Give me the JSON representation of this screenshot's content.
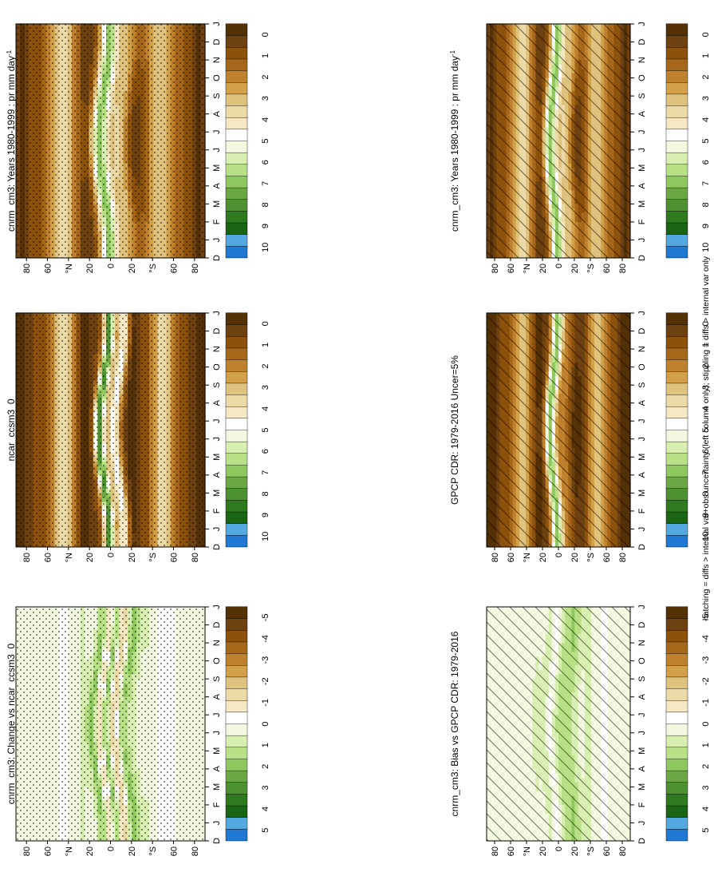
{
  "footnote": "hatching = diffs > internal var+obs uncertainty (left column only); stippling = diffs > internal var only",
  "months": [
    "D",
    "J",
    "F",
    "M",
    "A",
    "M",
    "J",
    "J",
    "A",
    "S",
    "O",
    "N",
    "D",
    "J"
  ],
  "lat_ticks": [
    "80",
    "60",
    "°N",
    "20",
    "0",
    "20",
    "°S",
    "60",
    "80"
  ],
  "palettes": {
    "clim": [
      "#543005",
      "#6e4110",
      "#8c510a",
      "#a6671a",
      "#bf812d",
      "#d1a049",
      "#dfc27d",
      "#ebd9a6",
      "#f6e8c3",
      "#ffffff",
      "#f2f9e0",
      "#d9efb2",
      "#b8e186",
      "#8fc85f",
      "#6ba845",
      "#4d9130",
      "#2f7a1e",
      "#1b6414",
      "#54a8e0",
      "#1f78d1"
    ],
    "diff": [
      "#543005",
      "#6e4110",
      "#8c510a",
      "#a6671a",
      "#bf812d",
      "#d1a049",
      "#dfc27d",
      "#ebd9a6",
      "#f6e8c3",
      "#ffffff",
      "#f2f9e0",
      "#d9efb2",
      "#b8e186",
      "#8fc85f",
      "#6ba845",
      "#4d9130",
      "#2f7a1e",
      "#1b6414",
      "#54a8e0",
      "#1f78d1"
    ]
  },
  "chart_data": [
    {
      "type": "heatmap",
      "title": "cnrm_cm3: Years 1980-1999 : pr mm day",
      "title_sup": "-1",
      "x": [
        "D",
        "J",
        "F",
        "M",
        "A",
        "M",
        "J",
        "J",
        "A",
        "S",
        "O",
        "N",
        "D",
        "J"
      ],
      "y_ticks": [
        "80",
        "60",
        "°N",
        "20",
        "0",
        "20",
        "°S",
        "60",
        "80"
      ],
      "colorbar_labels": [
        "10",
        "9",
        "8",
        "7",
        "6",
        "5",
        "4",
        "3",
        "2",
        "1",
        "0"
      ],
      "colorbar_range": [
        0,
        10
      ],
      "overlay": "hatching"
    },
    {
      "type": "heatmap",
      "title": "cnrm_cm3: Years 1980-1999 : pr mm day",
      "title_sup": "-1",
      "x": [
        "D",
        "J",
        "F",
        "M",
        "A",
        "M",
        "J",
        "J",
        "A",
        "S",
        "O",
        "N",
        "D",
        "J"
      ],
      "y_ticks": [
        "80",
        "60",
        "°N",
        "20",
        "0",
        "20",
        "°S",
        "60",
        "80"
      ],
      "colorbar_labels": [
        "10",
        "9",
        "8",
        "7",
        "6",
        "5",
        "4",
        "3",
        "2",
        "1",
        "0"
      ],
      "colorbar_range": [
        0,
        10
      ],
      "overlay": "stippling"
    },
    {
      "type": "heatmap",
      "title": "GPCP CDR: 1979-2016 Uncer=5%",
      "title_sup": "",
      "x": [
        "D",
        "J",
        "F",
        "M",
        "A",
        "M",
        "J",
        "J",
        "A",
        "S",
        "O",
        "N",
        "D",
        "J"
      ],
      "y_ticks": [
        "80",
        "60",
        "°N",
        "20",
        "0",
        "20",
        "°S",
        "60",
        "80"
      ],
      "colorbar_labels": [
        "10",
        "9",
        "8",
        "7",
        "6",
        "5",
        "4",
        "3",
        "2",
        "1",
        "0"
      ],
      "colorbar_range": [
        0,
        10
      ],
      "overlay": "hatching"
    },
    {
      "type": "heatmap",
      "title": "ncar_ccsm3_0",
      "title_sup": "",
      "x": [
        "D",
        "J",
        "F",
        "M",
        "A",
        "M",
        "J",
        "J",
        "A",
        "S",
        "O",
        "N",
        "D",
        "J"
      ],
      "y_ticks": [
        "80",
        "60",
        "°N",
        "20",
        "0",
        "20",
        "°S",
        "60",
        "80"
      ],
      "colorbar_labels": [
        "10",
        "9",
        "8",
        "7",
        "6",
        "5",
        "4",
        "3",
        "2",
        "1",
        "0"
      ],
      "colorbar_range": [
        0,
        10
      ],
      "overlay": "stippling"
    },
    {
      "type": "heatmap",
      "title": "cnrm_cm3: Bias vs GPCP CDR: 1979-2016",
      "title_sup": "",
      "x": [
        "D",
        "J",
        "F",
        "M",
        "A",
        "M",
        "J",
        "J",
        "A",
        "S",
        "O",
        "N",
        "D",
        "J"
      ],
      "y_ticks": [
        "80",
        "60",
        "°N",
        "20",
        "0",
        "20",
        "°S",
        "60",
        "80"
      ],
      "colorbar_labels": [
        "5",
        "4",
        "3",
        "2",
        "1",
        "0",
        "-1",
        "-2",
        "-3",
        "-4",
        "-5"
      ],
      "colorbar_range": [
        -5,
        5
      ],
      "overlay": "hatching"
    },
    {
      "type": "heatmap",
      "title": "cnrm_cm3: Change vs ncar_ccsm3_0",
      "title_sup": "",
      "x": [
        "D",
        "J",
        "F",
        "M",
        "A",
        "M",
        "J",
        "J",
        "A",
        "S",
        "O",
        "N",
        "D",
        "J"
      ],
      "y_ticks": [
        "80",
        "60",
        "°N",
        "20",
        "0",
        "20",
        "°S",
        "60",
        "80"
      ],
      "colorbar_labels": [
        "5",
        "4",
        "3",
        "2",
        "1",
        "0",
        "-1",
        "-2",
        "-3",
        "-4",
        "-5"
      ],
      "colorbar_range": [
        -5,
        5
      ],
      "overlay": "stippling"
    }
  ]
}
